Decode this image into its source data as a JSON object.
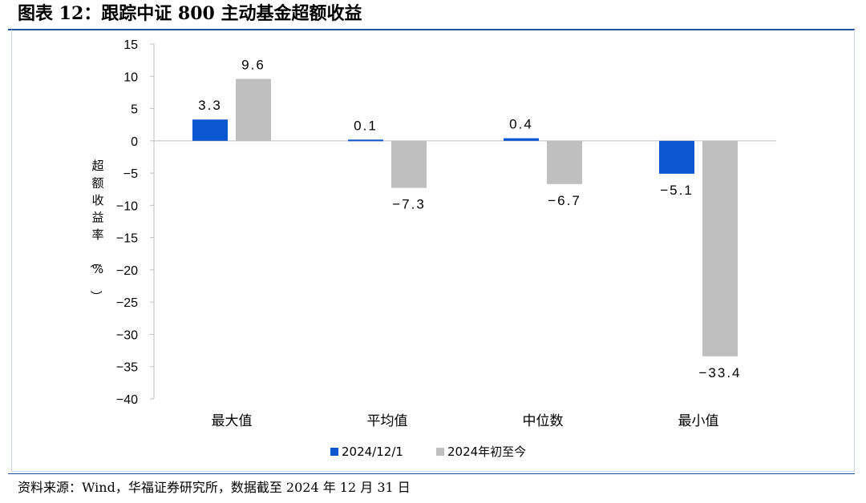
{
  "title": "图表 12：跟踪中证 800 主动基金超额收益",
  "source": "资料来源：Wind，华福证券研究所，数据截至 2024 年 12 月 31 日",
  "chart_data": {
    "type": "bar",
    "title": "",
    "xlabel": "",
    "ylabel": "超额收益率（%）",
    "categories": [
      "最大值",
      "平均值",
      "中位数",
      "最小值"
    ],
    "series": [
      {
        "name": "2024/12/1",
        "color": "#0b57d0",
        "values": [
          3.3,
          0.1,
          0.4,
          -5.1
        ]
      },
      {
        "name": "2024年初至今",
        "color": "#bfbfbf",
        "values": [
          9.6,
          -7.3,
          -6.7,
          -33.4
        ]
      }
    ],
    "ylim": [
      -40,
      15
    ],
    "yticks": [
      15,
      10,
      5,
      0,
      -5,
      -10,
      -15,
      -20,
      -25,
      -30,
      -35,
      -40
    ],
    "ytick_labels": [
      "15",
      "10",
      "5",
      "0",
      "-5",
      "-10",
      "-15",
      "-20",
      "-25",
      "-30",
      "-35",
      "-40"
    ],
    "data_labels": [
      [
        "3.3",
        "0.1",
        "0.4",
        "-5.1"
      ],
      [
        "9.6",
        "-7.3",
        "-6.7",
        "-33.4"
      ]
    ],
    "grid": false,
    "legend_position": "bottom"
  }
}
